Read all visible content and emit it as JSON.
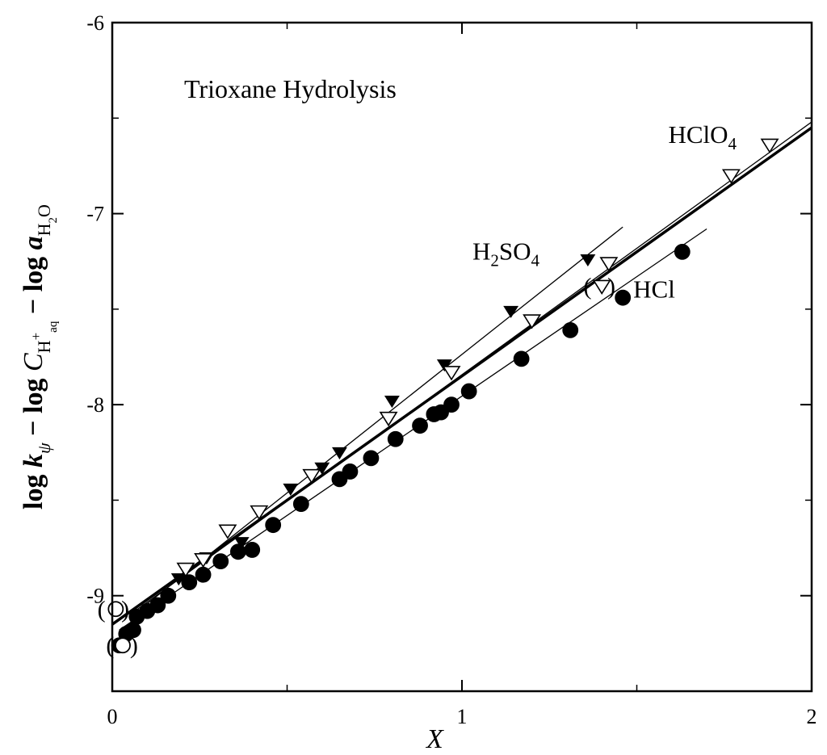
{
  "chart_data": {
    "type": "scatter",
    "title": "Trioxane Hydrolysis",
    "xlabel": {
      "text": "X"
    },
    "ylabel": {
      "parts": [
        {
          "text": "log ",
          "style": "bold"
        },
        {
          "text": "k",
          "style": "bold-italic"
        },
        {
          "text": "ψ",
          "style": "italic-sub"
        },
        {
          "text": " − log ",
          "style": "bold"
        },
        {
          "text": "C",
          "style": "italic"
        },
        {
          "text": "H",
          "style": "sub"
        },
        {
          "text": "+",
          "style": "subsup"
        },
        {
          "text": "aq",
          "style": "subsub"
        },
        {
          "text": " − log ",
          "style": "bold"
        },
        {
          "text": "a",
          "style": "bold-italic"
        },
        {
          "text": "H",
          "style": "sub"
        },
        {
          "text": "2",
          "style": "subsub"
        },
        {
          "text": "O",
          "style": "sub"
        }
      ]
    },
    "xlim": [
      0,
      2
    ],
    "ylim": [
      -9.5,
      -6
    ],
    "x_ticks": [
      {
        "value": 0,
        "label": "0"
      },
      {
        "value": 1,
        "label": "1"
      },
      {
        "value": 2,
        "label": "2"
      }
    ],
    "y_ticks": [
      {
        "value": -9,
        "label": "-9"
      },
      {
        "value": -8,
        "label": "-8"
      },
      {
        "value": -7,
        "label": "-7"
      },
      {
        "value": -6,
        "label": "-6"
      }
    ],
    "grid": false,
    "series": [
      {
        "label_parts": [
          {
            "text": "H"
          },
          {
            "text": "2",
            "sub": true
          },
          {
            "text": "SO"
          },
          {
            "text": "4",
            "sub": true
          }
        ],
        "label_pos": [
          1.03,
          -7.24
        ],
        "marker": "filled-triangle-down",
        "color": "#000000",
        "points": [
          [
            0.19,
            -8.91
          ],
          [
            0.27,
            -8.8
          ],
          [
            0.37,
            -8.72
          ],
          [
            0.51,
            -8.44
          ],
          [
            0.6,
            -8.33
          ],
          [
            0.65,
            -8.25
          ],
          [
            0.8,
            -7.98
          ],
          [
            0.95,
            -7.79
          ],
          [
            1.14,
            -7.51
          ],
          [
            1.36,
            -7.24
          ]
        ],
        "fit": {
          "x": [
            0.06,
            1.46
          ],
          "y": [
            -9.1,
            -7.07
          ]
        }
      },
      {
        "label_parts": [
          {
            "text": "HClO"
          },
          {
            "text": "4",
            "sub": true
          }
        ],
        "label_pos": [
          1.59,
          -6.63
        ],
        "marker": "open-triangle-down",
        "color": "#000000",
        "points": [
          [
            0.21,
            -8.86
          ],
          [
            0.26,
            -8.81
          ],
          [
            0.33,
            -8.66
          ],
          [
            0.42,
            -8.56
          ],
          [
            0.57,
            -8.37
          ],
          [
            0.79,
            -8.07
          ],
          [
            0.97,
            -7.83
          ],
          [
            1.2,
            -7.56
          ],
          [
            1.42,
            -7.26
          ],
          [
            1.77,
            -6.8
          ],
          [
            1.88,
            -6.64
          ]
        ],
        "fit": {
          "x": [
            0.05,
            2.0
          ],
          "y": [
            -9.1,
            -6.52
          ]
        }
      },
      {
        "label_parts": [
          {
            "text": "HCl"
          }
        ],
        "label_pos": [
          1.49,
          -7.44
        ],
        "marker": "filled-circle",
        "color": "#000000",
        "points": [
          [
            0.02,
            -9.26
          ],
          [
            0.04,
            -9.2
          ],
          [
            0.06,
            -9.18
          ],
          [
            0.07,
            -9.11
          ],
          [
            0.1,
            -9.08
          ],
          [
            0.13,
            -9.05
          ],
          [
            0.16,
            -9.0
          ],
          [
            0.22,
            -8.93
          ],
          [
            0.26,
            -8.89
          ],
          [
            0.31,
            -8.82
          ],
          [
            0.36,
            -8.77
          ],
          [
            0.4,
            -8.76
          ],
          [
            0.46,
            -8.63
          ],
          [
            0.54,
            -8.52
          ],
          [
            0.65,
            -8.39
          ],
          [
            0.68,
            -8.35
          ],
          [
            0.74,
            -8.28
          ],
          [
            0.81,
            -8.18
          ],
          [
            0.88,
            -8.11
          ],
          [
            0.92,
            -8.05
          ],
          [
            0.94,
            -8.04
          ],
          [
            0.97,
            -8.0
          ],
          [
            1.02,
            -7.93
          ],
          [
            1.17,
            -7.76
          ],
          [
            1.31,
            -7.61
          ],
          [
            1.46,
            -7.44
          ],
          [
            1.63,
            -7.2
          ]
        ],
        "fit": {
          "x": [
            0.02,
            1.7
          ],
          "y": [
            -9.18,
            -7.08
          ]
        }
      },
      {
        "label_parts": [],
        "marker": "open-circle",
        "color": "#000000",
        "points": [
          [
            0.01,
            -9.07
          ],
          [
            0.03,
            -9.26
          ]
        ]
      },
      {
        "label_parts": [],
        "marker": "open-triangle-down",
        "color": "#000000",
        "points": [
          [
            1.4,
            -7.38
          ]
        ]
      }
    ],
    "overall_fit": {
      "x": [
        0.0,
        2.0
      ],
      "y": [
        -9.15,
        -6.55
      ],
      "weight": "bold"
    },
    "parenthesized": [
      {
        "x": 0.01,
        "y": -9.07,
        "label": "( )"
      },
      {
        "x": 0.035,
        "y": -9.26,
        "label": "( )"
      },
      {
        "x": 1.4,
        "y": -7.38,
        "label": "( )"
      }
    ]
  }
}
